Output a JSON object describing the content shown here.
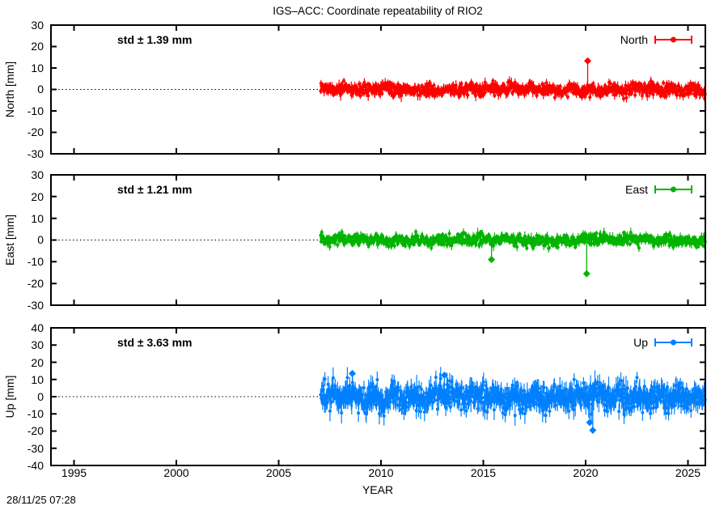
{
  "timestamp": "28/11/25 07:28",
  "chart_data": {
    "type": "scatter",
    "title": "IGS–ACC: Coordinate repeatability of RIO2",
    "xlabel": "YEAR",
    "xlim": [
      1993.8,
      2026.0
    ],
    "xticks": [
      1995,
      2000,
      2005,
      2010,
      2015,
      2020,
      2025
    ],
    "data_start_year": 2007.05,
    "data_end_year": 2025.85,
    "points_per_year": 52,
    "grid": "zero-line-dotted",
    "legend_position": "top-right-inside",
    "panels": [
      {
        "name": "North",
        "ylabel": "North [mm]",
        "legend": "North",
        "std_label": "std ± 1.39 mm",
        "std_mm": 1.39,
        "color": "#ff0000",
        "ylim": [
          -30,
          30
        ],
        "yticks": [
          30,
          20,
          10,
          0,
          -10,
          -20,
          -30
        ],
        "outliers": [
          {
            "year": 2020.1,
            "value": 13.3
          }
        ]
      },
      {
        "name": "East",
        "ylabel": "East [mm]",
        "legend": "East",
        "std_label": "std ± 1.21 mm",
        "std_mm": 1.21,
        "color": "#00b400",
        "ylim": [
          -30,
          30
        ],
        "yticks": [
          30,
          20,
          10,
          0,
          -10,
          -20,
          -30
        ],
        "outliers": [
          {
            "year": 2015.4,
            "value": -9.0
          },
          {
            "year": 2020.05,
            "value": -15.5
          }
        ]
      },
      {
        "name": "Up",
        "ylabel": "Up [mm]",
        "legend": "Up",
        "std_label": "std ± 3.63 mm",
        "std_mm": 3.63,
        "color": "#0080ff",
        "ylim": [
          -40,
          40
        ],
        "yticks": [
          40,
          30,
          20,
          10,
          0,
          -10,
          -20,
          -30,
          -40
        ],
        "outliers": [
          {
            "year": 2008.6,
            "value": 13.5
          },
          {
            "year": 2013.1,
            "value": 12.5
          },
          {
            "year": 2020.2,
            "value": -15.0
          },
          {
            "year": 2020.35,
            "value": -19.5
          }
        ]
      }
    ]
  }
}
